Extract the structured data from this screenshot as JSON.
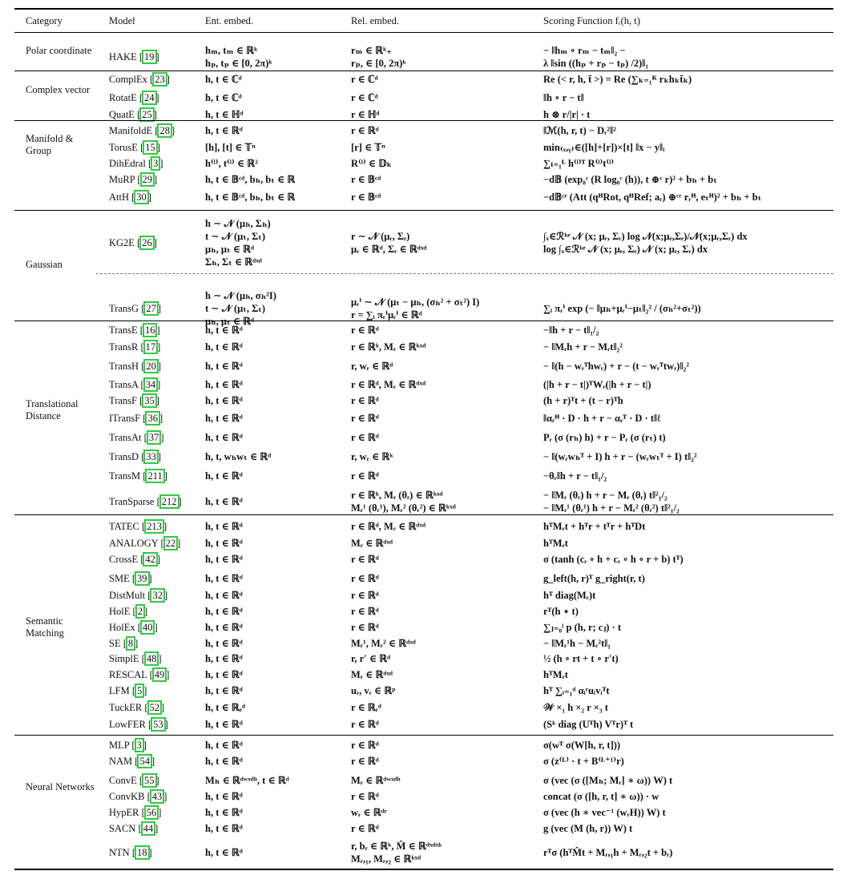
{
  "headers": [
    "Category",
    "Model",
    "Ent. embed.",
    "Rel. embed.",
    "Scoring Function fᵣ(h, t)"
  ],
  "groups": [
    {
      "category": "Polar coordinate",
      "rows": [
        {
          "model": "HAKE",
          "ref": "19",
          "ent": [
            "hₘ, tₘ ∈ ℝᵏ",
            "hₚ, tₚ ∈ [0, 2π)ᵏ"
          ],
          "rel": [
            "rₘ ∈ ℝᵏ₊",
            "rₚ, ∈ [0, 2π)ᵏ"
          ],
          "score": [
            "− ‖hₘ ∘ rₘ − tₘ‖₂ −",
            "λ ‖sin ((hₚ + rₚ − tₚ) /2)‖₁"
          ]
        }
      ]
    },
    {
      "category": "Complex vector",
      "rows": [
        {
          "model": "ComplEx",
          "ref": "23",
          "ent": [
            "h, t ∈ ℂᵈ"
          ],
          "rel": [
            "r ∈ ℂᵈ"
          ],
          "score": [
            "Re (< r, h, t̄ >) = Re (∑ₖ₌₁ᴷ rₖhₖt̄ₖ)"
          ]
        },
        {
          "model": "RotatE",
          "ref": "24",
          "ent": [
            "h, t ∈ ℂᵈ"
          ],
          "rel": [
            "r ∈ ℂᵈ"
          ],
          "score": [
            "‖h ∘ r − t‖"
          ]
        },
        {
          "model": "QuatE",
          "ref": "25",
          "ent": [
            "h, t ∈ ℍᵈ"
          ],
          "rel": [
            "r ∈ ℍᵈ"
          ],
          "score": [
            "h ⊗ r/|r| · t"
          ]
        }
      ]
    },
    {
      "category": "Manifold & Group",
      "rows": [
        {
          "model": "ManifoldE",
          "ref": "28",
          "ent": [
            "h, t ∈ ℝᵈ"
          ],
          "rel": [
            "r ∈ ℝᵈ"
          ],
          "score": [
            "‖ℳ(h, r, t) − Dᵣ²‖²"
          ]
        },
        {
          "model": "TorusE",
          "ref": "15",
          "ent": [
            "[h], [t] ∈ 𝕋ⁿ"
          ],
          "rel": [
            "[r] ∈ 𝕋ⁿ"
          ],
          "score": [
            "min₍ₓ,ᵧ₎∈([h]+[r])×[t] ‖x − y‖ᵢ"
          ]
        },
        {
          "model": "DihEdral",
          "ref": "3",
          "ent": [
            "h⁽ˡ⁾, t⁽ˡ⁾ ∈ ℝ²"
          ],
          "rel": [
            "R⁽ˡ⁾ ∈ 𝔻ₖ"
          ],
          "score": [
            "∑ₗ₌₁ᴸ h⁽ˡ⁾ᵀ R⁽ˡ⁾t⁽ˡ⁾"
          ]
        },
        {
          "model": "MuRP",
          "ref": "29",
          "ent": [
            "h, t ∈ 𝔹ᶜᵈ, bₕ, bₜ ∈ ℝ"
          ],
          "rel": [
            "r ∈ 𝔹ᶜᵈ"
          ],
          "score": [
            "−d𝔹 (exp₀ᶜ (R log₀ᶜ (h)), t ⊕ᶜ r)² + bₕ + bₜ"
          ]
        },
        {
          "model": "AttH",
          "ref": "30",
          "ent": [
            "h, t ∈ 𝔹ᶜᵈ, bₕ, bₜ ∈ ℝ"
          ],
          "rel": [
            "r ∈ 𝔹ᶜᵈ"
          ],
          "score": [
            "−d𝔹ᶜʳ (Att (qᴴRot, qᴴRef; aᵣ) ⊕ᶜʳ rᵣᴴ, eₜᴴ)² + bₕ + bₜ"
          ]
        }
      ]
    },
    {
      "category": "Gaussian",
      "rows": [
        {
          "model": "KG2E",
          "ref": "26",
          "ent": [
            "h ∼ 𝒩 (μₕ, Σₕ)",
            "t ∼ 𝒩 (μₜ, Σₜ)",
            "μₕ, μₜ ∈ ℝᵈ",
            "Σₕ, Σₜ ∈ ℝᵈˣᵈ"
          ],
          "rel": [
            "r ∼ 𝒩 (μᵣ, Σᵣ)",
            "μᵣ ∈ ℝᵈ, Σᵣ ∈ ℝᵈˣᵈ"
          ],
          "score": [
            "∫ₓ∈ℛᵏᵉ 𝒩 (x; μᵣ, Σᵣ) log 𝒩(x;μₑ,Σₑ)/𝒩(x;μᵣ,Σᵣ) dx",
            "log ∫ₓ∈ℛᵏᵉ 𝒩 (x; μₑ, Σₑ) 𝒩 (x; μᵣ, Σᵣ) dx"
          ]
        },
        {
          "model": "TransG",
          "ref": "27",
          "ent": [
            "h ∼ 𝒩 (μₕ, σₕ²I)",
            "t ∼ 𝒩 (μₜ, Σₜ)",
            "μₕ, μₜ ∈ ℝᵈ"
          ],
          "rel": [
            "μᵣⁱ ∼ 𝒩 (μₜ − μₕ, (σₕ² + σₜ²) I)",
            "r = ∑ᵢ πᵣⁱμᵣⁱ ∈ ℝᵈ"
          ],
          "score": [
            "∑ᵢ πᵣⁱ exp (− ‖μₕ+μᵣⁱ−μₜ‖₂² / (σₕ²+σₜ²))"
          ]
        }
      ]
    },
    {
      "category": "Translational Distance",
      "rows": [
        {
          "model": "TransE",
          "ref": "16",
          "ent": [
            "h, t ∈ ℝᵈ"
          ],
          "rel": [
            "r ∈ ℝᵈ"
          ],
          "score": [
            "−‖h + r − t‖₁/₂"
          ]
        },
        {
          "model": "TransR",
          "ref": "17",
          "ent": [
            "h, t ∈ ℝᵈ"
          ],
          "rel": [
            "r ∈ ℝᵏ, Mᵣ ∈ ℝᵏˣᵈ"
          ],
          "score": [
            "− ‖Mᵣh + r − Mᵣt‖₂²"
          ]
        },
        {
          "model": "TransH",
          "ref": "20",
          "ent": [
            "h, t ∈ ℝᵈ"
          ],
          "rel": [
            "r, wᵣ ∈ ℝᵈ"
          ],
          "score": [
            "− ‖(h − wᵣᵀhwᵣ) + r − (t − wᵣᵀtwᵣ)‖₂²"
          ]
        },
        {
          "model": "TransA",
          "ref": "34",
          "ent": [
            "h, t ∈ ℝᵈ"
          ],
          "rel": [
            "r ∈ ℝᵈ, Mᵣ ∈ ℝᵈˣᵈ"
          ],
          "score": [
            "(|h + r − t|)ᵀWᵣ(|h + r − t|)"
          ]
        },
        {
          "model": "TransF",
          "ref": "35",
          "ent": [
            "h, t ∈ ℝᵈ"
          ],
          "rel": [
            "r ∈ ℝᵈ"
          ],
          "score": [
            "(h + r)ᵀt + (t − r)ᵀh"
          ]
        },
        {
          "model": "ITransF",
          "ref": "36",
          "ent": [
            "h, t ∈ ℝᵈ"
          ],
          "rel": [
            "r ∈ ℝᵈ"
          ],
          "score": [
            "‖αᵣᴴ · D · h + r − αᵣᵀ · D · t‖ℓ"
          ]
        },
        {
          "model": "TransAt",
          "ref": "37",
          "ent": [
            "h, t ∈ ℝᵈ"
          ],
          "rel": [
            "r ∈ ℝᵈ"
          ],
          "score": [
            "Pᵣ (σ (rₕ) h) + r − Pᵣ (σ (rₜ) t)"
          ]
        },
        {
          "model": "TransD",
          "ref": "33",
          "ent": [
            "h, t, wₕwₜ ∈ ℝᵈ"
          ],
          "rel": [
            "r, wᵣ ∈ ℝᵏ"
          ],
          "score": [
            "− ‖(wᵣwₕᵀ + I) h + r − (wᵣwₜᵀ + I) t‖₂²"
          ]
        },
        {
          "model": "TransM",
          "ref": "211",
          "ent": [
            "h, t ∈ ℝᵈ"
          ],
          "rel": [
            "r ∈ ℝᵈ"
          ],
          "score": [
            "−θᵣ‖h + r − t‖₁/₂"
          ]
        },
        {
          "model": "TranSparse",
          "ref": "212",
          "ent": [
            "h, t ∈ ℝᵈ"
          ],
          "rel": [
            "r ∈ ℝᵏ, Mᵣ (θᵣ) ∈ ℝᵏˣᵈ",
            "Mᵣ¹ (θᵣ¹), Mᵣ² (θᵣ²) ∈ ℝᵏˣᵈ"
          ],
          "score": [
            "− ‖Mᵣ (θᵣ) h + r − Mᵣ (θᵣ) t‖²₁/₂",
            "− ‖Mᵣ¹ (θᵣ¹) h + r − Mᵣ² (θᵣ²) t‖²₁/₂"
          ]
        }
      ]
    },
    {
      "category": "Semantic Matching",
      "rows": [
        {
          "model": "TATEC",
          "ref": "213",
          "ent": [
            "h, t ∈ ℝᵈ"
          ],
          "rel": [
            "r ∈ ℝᵈ, Mᵣ ∈ ℝᵈˣᵈ"
          ],
          "score": [
            "hᵀMᵣt + hᵀr + tᵀr + hᵀDt"
          ]
        },
        {
          "model": "ANALOGY",
          "ref": "22",
          "ent": [
            "h, t ∈ ℝᵈ"
          ],
          "rel": [
            "Mᵣ ∈ ℝᵈˣᵈ"
          ],
          "score": [
            "hᵀMᵣt"
          ]
        },
        {
          "model": "CrossE",
          "ref": "42",
          "ent": [
            "h, t ∈ ℝᵈ"
          ],
          "rel": [
            "r ∈ ℝᵈ"
          ],
          "score": [
            "σ (tanh (cᵣ ∘ h + cᵣ ∘ h ∘ r + b) tᵀ)"
          ]
        },
        {
          "model": "SME",
          "ref": "39",
          "ent": [
            "h, t ∈ ℝᵈ"
          ],
          "rel": [
            "r ∈ ℝᵈ"
          ],
          "score": [
            "g_left(h, r)ᵀ g_right(r, t)"
          ]
        },
        {
          "model": "DistMult",
          "ref": "32",
          "ent": [
            "h, t ∈ ℝᵈ"
          ],
          "rel": [
            "r ∈ ℝᵈ"
          ],
          "score": [
            "hᵀ diag(Mᵣ)t"
          ]
        },
        {
          "model": "HolE",
          "ref": "2",
          "ent": [
            "h, t ∈ ℝᵈ"
          ],
          "rel": [
            "r ∈ ℝᵈ"
          ],
          "score": [
            "rᵀ(h ⋆ t)"
          ]
        },
        {
          "model": "HolEx",
          "ref": "40",
          "ent": [
            "h, t ∈ ℝᵈ"
          ],
          "rel": [
            "r ∈ ℝᵈ"
          ],
          "score": [
            "∑ⱼ₌₀ˡ p (h, r; cⱼ) · t"
          ]
        },
        {
          "model": "SE",
          "ref": "8",
          "ent": [
            "h, t ∈ ℝᵈ"
          ],
          "rel": [
            "Mᵣ¹, Mᵣ² ∈ ℝᵈˣᵈ"
          ],
          "score": [
            "− ‖Mᵣ¹h − Mᵣ²t‖₁"
          ]
        },
        {
          "model": "SimplE",
          "ref": "48",
          "ent": [
            "h, t ∈ ℝᵈ"
          ],
          "rel": [
            "r, r′ ∈ ℝᵈ"
          ],
          "score": [
            "½ (h ∘ rt + t ∘ r′t)"
          ]
        },
        {
          "model": "RESCAL",
          "ref": "49",
          "ent": [
            "h, t ∈ ℝᵈ"
          ],
          "rel": [
            "Mᵣ ∈ ℝᵈˣᵈ"
          ],
          "score": [
            "hᵀMᵣt"
          ]
        },
        {
          "model": "LFM",
          "ref": "5",
          "ent": [
            "h, t ∈ ℝᵈ"
          ],
          "rel": [
            "uᵣ, vᵣ ∈ ℝᵖ"
          ],
          "score": [
            "hᵀ ∑ᵢ₌₁ᵈ αᵢʳuᵢvᵢᵀt"
          ]
        },
        {
          "model": "TuckER",
          "ref": "52",
          "ent": [
            "h, t ∈ ℝₑᵈ"
          ],
          "rel": [
            "r ∈ ℝᵣᵈ"
          ],
          "score": [
            "𝒲 ×₁ h ×₂ r ×₃ t"
          ]
        },
        {
          "model": "LowFER",
          "ref": "53",
          "ent": [
            "h, t ∈ ℝᵈ"
          ],
          "rel": [
            "r ∈ ℝᵈ"
          ],
          "score": [
            "(Sᵏ diag (Uᵀh) Vᵀr)ᵀ t"
          ]
        }
      ]
    },
    {
      "category": "Neural Networks",
      "rows": [
        {
          "model": "MLP",
          "ref": "3",
          "ent": [
            "h, t ∈ ℝᵈ"
          ],
          "rel": [
            "r ∈ ℝᵈ"
          ],
          "score": [
            "σ(wᵀ σ(W[h, r, t]))"
          ]
        },
        {
          "model": "NAM",
          "ref": "54",
          "ent": [
            "h, t ∈ ℝᵈ"
          ],
          "rel": [
            "r ∈ ℝᵈ"
          ],
          "score": [
            "σ (z⁽ᴸ⁾ · t + B⁽ᴸ⁺¹⁾r)"
          ]
        },
        {
          "model": "ConvE",
          "ref": "55",
          "ent": [
            "Mₕ ∈ ℝᵈʷˣᵈʰ, t ∈ ℝᵈ"
          ],
          "rel": [
            "Mᵣ ∈ ℝᵈʷˣᵈʰ"
          ],
          "score": [
            "σ (vec (σ ([Mₕ; Mᵣ] ∗ ω)) W) t"
          ]
        },
        {
          "model": "ConvKB",
          "ref": "43",
          "ent": [
            "h, t ∈ ℝᵈ"
          ],
          "rel": [
            "r ∈ ℝᵈ"
          ],
          "score": [
            "concat (σ ([h, r, t] ∗ ω)) · w"
          ]
        },
        {
          "model": "HypER",
          "ref": "56",
          "ent": [
            "h, t ∈ ℝᵈ"
          ],
          "rel": [
            "wᵣ ∈ ℝᵈʳ"
          ],
          "score": [
            "σ (vec (h ∗ vec⁻¹ (wᵣH)) W) t"
          ]
        },
        {
          "model": "SACN",
          "ref": "44",
          "ent": [
            "h, t ∈ ℝᵈ"
          ],
          "rel": [
            "r ∈ ℝᵈ"
          ],
          "score": [
            "g (vec (M (h, r)) W) t"
          ]
        },
        {
          "model": "NTN",
          "ref": "18",
          "ent": [
            "h, t ∈ ℝᵈ"
          ],
          "rel": [
            "r, bᵣ ∈ ℝᵏ, M̂ ∈ ℝᵈˣᵈˣᵏ",
            "Mᵣ,₁, Mᵣ,₂ ∈ ℝᵏˣᵈ"
          ],
          "score": [
            "rᵀσ (hᵀM̂t + Mᵣ,₁h + Mᵣ,₂t + bᵣ)"
          ]
        }
      ]
    }
  ]
}
